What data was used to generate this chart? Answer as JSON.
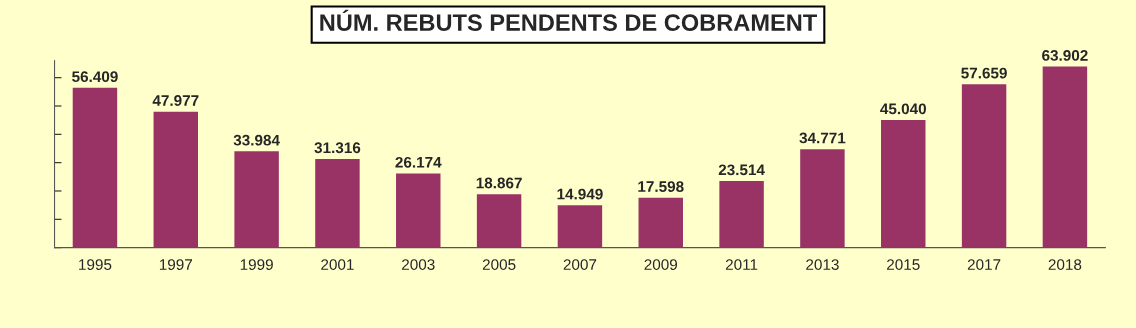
{
  "chart_data": {
    "type": "bar",
    "title": "NÚM. REBUTS PENDENTS DE COBRAMENT",
    "categories": [
      "1995",
      "1997",
      "1999",
      "2001",
      "2003",
      "2005",
      "2007",
      "2009",
      "2011",
      "2013",
      "2015",
      "2017",
      "2018"
    ],
    "values": [
      56409,
      47977,
      33984,
      31316,
      26174,
      18867,
      14949,
      17598,
      23514,
      34771,
      45040,
      57659,
      63902
    ],
    "value_labels": [
      "56.409",
      "47.977",
      "33.984",
      "31.316",
      "26.174",
      "18.867",
      "14.949",
      "17.598",
      "23.514",
      "34.771",
      "45.040",
      "57.659",
      "63.902"
    ],
    "color": "#993366",
    "ylim": [
      0,
      66000
    ],
    "yticks": [
      {
        "value": 0,
        "label": null
      },
      {
        "value": 10000,
        "label": null
      },
      {
        "value": 20000,
        "label": null
      },
      {
        "value": 30000,
        "label": null
      },
      {
        "value": 40000,
        "label": null
      },
      {
        "value": 50000,
        "label": null
      },
      {
        "value": 60000,
        "label": null
      }
    ],
    "grid": false
  }
}
